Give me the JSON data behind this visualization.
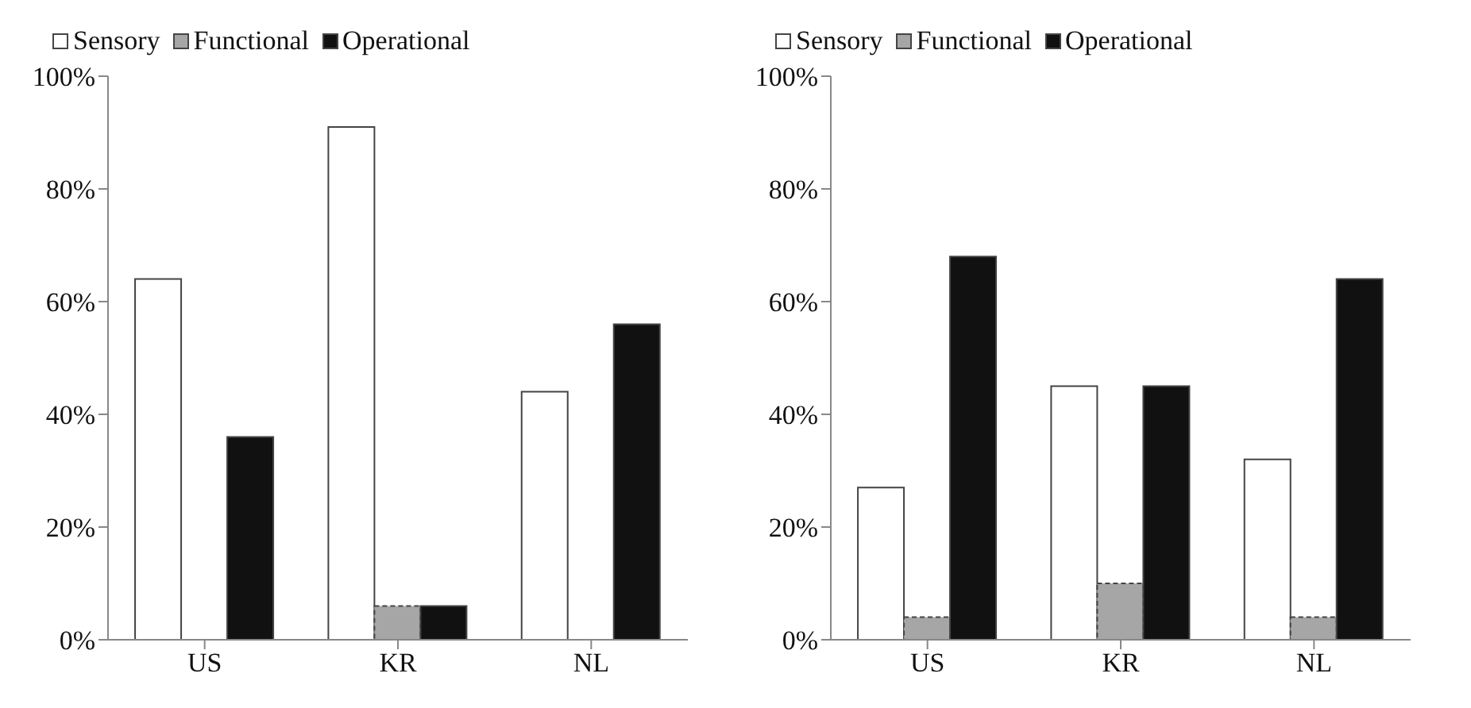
{
  "chart_data": [
    {
      "type": "bar",
      "categories": [
        "US",
        "KR",
        "NL"
      ],
      "series": [
        {
          "name": "Sensory",
          "color": "#ffffff",
          "values": [
            64,
            91,
            44
          ]
        },
        {
          "name": "Functional",
          "color": "#a6a6a6",
          "values": [
            0,
            6,
            0
          ]
        },
        {
          "name": "Operational",
          "color": "#111111",
          "values": [
            36,
            6,
            56
          ]
        }
      ],
      "ylim": [
        0,
        100
      ],
      "yticks": [
        {
          "value": 0,
          "label": "0%"
        },
        {
          "value": 20,
          "label": "20%"
        },
        {
          "value": 40,
          "label": "40%"
        },
        {
          "value": 60,
          "label": "60%"
        },
        {
          "value": 80,
          "label": "80%"
        },
        {
          "value": 100,
          "label": "100%"
        }
      ],
      "grid": false,
      "legend": "top left"
    },
    {
      "type": "bar",
      "categories": [
        "US",
        "KR",
        "NL"
      ],
      "series": [
        {
          "name": "Sensory",
          "color": "#ffffff",
          "values": [
            27,
            45,
            32
          ]
        },
        {
          "name": "Functional",
          "color": "#a6a6a6",
          "values": [
            4,
            10,
            4
          ]
        },
        {
          "name": "Operational",
          "color": "#111111",
          "values": [
            68,
            45,
            64
          ]
        }
      ],
      "ylim": [
        0,
        100
      ],
      "yticks": [
        {
          "value": 0,
          "label": "0%"
        },
        {
          "value": 20,
          "label": "20%"
        },
        {
          "value": 40,
          "label": "40%"
        },
        {
          "value": 60,
          "label": "60%"
        },
        {
          "value": 80,
          "label": "80%"
        },
        {
          "value": 100,
          "label": "100%"
        }
      ],
      "grid": false,
      "legend": "top left"
    }
  ]
}
